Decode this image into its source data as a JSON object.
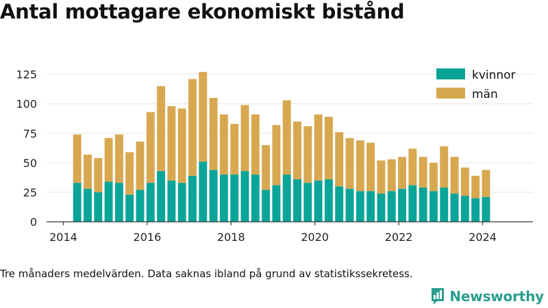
{
  "title": "Antal mottagare ekonomiskt bistånd",
  "footnote": "Tre månaders medelvärden. Data saknas ibland på grund av statistikssekretess.",
  "brand": {
    "name": "Newsworthy",
    "icon": "newsworthy-logo-icon"
  },
  "colors": {
    "kvinnor": "#0aa598",
    "man": "#d8a851",
    "axis": "#333333",
    "grid": "#e3e3e3"
  },
  "chart_data": {
    "type": "bar",
    "stacked": true,
    "title": "Antal mottagare ekonomiskt bistånd",
    "xlabel": "",
    "ylabel": "",
    "ylim": [
      0,
      130
    ],
    "xlim": [
      2013.6,
      2025.2
    ],
    "grid": true,
    "legend_position": "top-right",
    "y_ticks": [
      0,
      25,
      50,
      75,
      100,
      125
    ],
    "x_ticks": [
      2014,
      2016,
      2018,
      2020,
      2022,
      2024
    ],
    "x": [
      2014.33,
      2014.58,
      2014.83,
      2015.08,
      2015.33,
      2015.58,
      2015.83,
      2016.08,
      2016.33,
      2016.58,
      2016.83,
      2017.08,
      2017.33,
      2017.58,
      2017.83,
      2018.08,
      2018.33,
      2018.58,
      2018.83,
      2019.08,
      2019.33,
      2019.58,
      2019.83,
      2020.08,
      2020.33,
      2020.58,
      2020.83,
      2021.08,
      2021.33,
      2021.58,
      2021.83,
      2022.08,
      2022.33,
      2022.58,
      2022.83,
      2023.08,
      2023.33,
      2023.58,
      2023.83,
      2024.08
    ],
    "series": [
      {
        "name": "kvinnor",
        "values": [
          33,
          28,
          25,
          34,
          33,
          23,
          27,
          33,
          43,
          35,
          33,
          39,
          51,
          44,
          40,
          40,
          43,
          40,
          27,
          31,
          40,
          36,
          33,
          35,
          36,
          30,
          28,
          26,
          26,
          24,
          26,
          28,
          31,
          29,
          26,
          29,
          24,
          22,
          20,
          21
        ]
      },
      {
        "name": "män",
        "values": [
          41,
          29,
          29,
          37,
          41,
          36,
          41,
          60,
          72,
          63,
          63,
          82,
          76,
          61,
          51,
          43,
          56,
          51,
          38,
          51,
          63,
          49,
          48,
          56,
          53,
          46,
          43,
          43,
          41,
          28,
          27,
          27,
          31,
          26,
          24,
          35,
          31,
          24,
          19,
          23
        ]
      }
    ]
  }
}
